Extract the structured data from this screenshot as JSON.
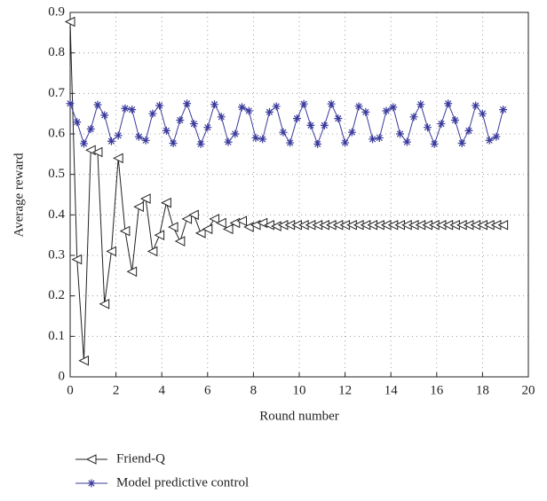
{
  "chart_data": {
    "type": "line",
    "xlabel": "Round number",
    "ylabel": "Average reward",
    "x": [
      0,
      0.3,
      0.6,
      0.9,
      1.2,
      1.5,
      1.8,
      2.1,
      2.4,
      2.7,
      3,
      3.3,
      3.6,
      3.9,
      4.2,
      4.5,
      4.8,
      5.1,
      5.4,
      5.7,
      6,
      6.3,
      6.6,
      6.9,
      7.2,
      7.5,
      7.8,
      8.1,
      8.4,
      8.7,
      9,
      9.3,
      9.6,
      9.9,
      10.2,
      10.5,
      10.8,
      11.1,
      11.4,
      11.7,
      12,
      12.3,
      12.6,
      12.9,
      13.2,
      13.5,
      13.8,
      14.1,
      14.4,
      14.7,
      15,
      15.3,
      15.6,
      15.9,
      16.2,
      16.5,
      16.8,
      17.1,
      17.4,
      17.7,
      18,
      18.3,
      18.6,
      18.9
    ],
    "series": [
      {
        "name": "Friend-Q",
        "color": "#222222",
        "marker": "triangle-left",
        "values": [
          0.877,
          0.29,
          0.04,
          0.56,
          0.555,
          0.18,
          0.31,
          0.54,
          0.36,
          0.26,
          0.42,
          0.44,
          0.31,
          0.35,
          0.43,
          0.37,
          0.335,
          0.39,
          0.4,
          0.355,
          0.365,
          0.39,
          0.38,
          0.365,
          0.38,
          0.385,
          0.37,
          0.375,
          0.38,
          0.375,
          0.372,
          0.375,
          0.375,
          0.375,
          0.375,
          0.375,
          0.375,
          0.375,
          0.375,
          0.375,
          0.375,
          0.375,
          0.375,
          0.375,
          0.375,
          0.375,
          0.375,
          0.375,
          0.375,
          0.375,
          0.375,
          0.375,
          0.375,
          0.375,
          0.375,
          0.375,
          0.375,
          0.375,
          0.375,
          0.375,
          0.375,
          0.375,
          0.375,
          0.375
        ]
      },
      {
        "name": "Model predictive control",
        "color": "#3a3a9c",
        "marker": "asterisk",
        "values": [
          0.675,
          0.629,
          0.576,
          0.612,
          0.672,
          0.646,
          0.582,
          0.596,
          0.663,
          0.66,
          0.593,
          0.584,
          0.65,
          0.67,
          0.608,
          0.577,
          0.634,
          0.675,
          0.625,
          0.575,
          0.616,
          0.673,
          0.642,
          0.58,
          0.6,
          0.666,
          0.657,
          0.59,
          0.587,
          0.654,
          0.668,
          0.604,
          0.578,
          0.638,
          0.674,
          0.621,
          0.575,
          0.621,
          0.674,
          0.638,
          0.578,
          0.604,
          0.668,
          0.654,
          0.587,
          0.59,
          0.657,
          0.666,
          0.6,
          0.58,
          0.642,
          0.673,
          0.616,
          0.575,
          0.625,
          0.675,
          0.634,
          0.577,
          0.608,
          0.67,
          0.65,
          0.584,
          0.593,
          0.66
        ]
      }
    ],
    "xlim": [
      0,
      20
    ],
    "xticks": [
      0,
      2,
      4,
      6,
      8,
      10,
      12,
      14,
      16,
      18,
      20
    ],
    "ylim": [
      0,
      0.9
    ],
    "yticks": [
      0,
      0.1,
      0.2,
      0.3,
      0.4,
      0.5,
      0.6,
      0.7,
      0.8,
      0.9
    ],
    "grid": true,
    "legend": "bottom-left"
  }
}
